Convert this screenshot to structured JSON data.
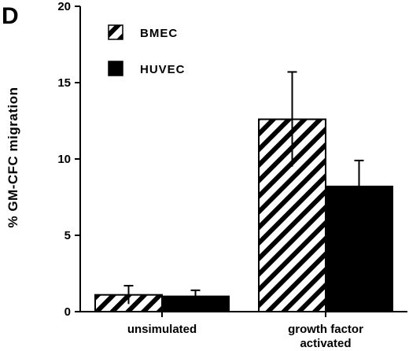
{
  "panel_label": "D",
  "chart_data": {
    "type": "bar",
    "categories": [
      [
        "unsimulated"
      ],
      [
        "growth factor",
        "activated"
      ]
    ],
    "series": [
      {
        "name": "BMEC",
        "pattern": "hatched",
        "values": [
          1.1,
          12.6
        ],
        "errors": [
          0.6,
          3.1
        ]
      },
      {
        "name": "HUVEC",
        "pattern": "solid",
        "values": [
          1.0,
          8.2
        ],
        "errors": [
          0.4,
          1.7
        ]
      }
    ],
    "ylabel": "% GM-CFC  migration",
    "ylim": [
      0,
      20
    ],
    "yticks": [
      0,
      5,
      10,
      15,
      20
    ],
    "legend_position": "top-left",
    "colors": {
      "bar": "#000000",
      "background": "#ffffff"
    }
  }
}
